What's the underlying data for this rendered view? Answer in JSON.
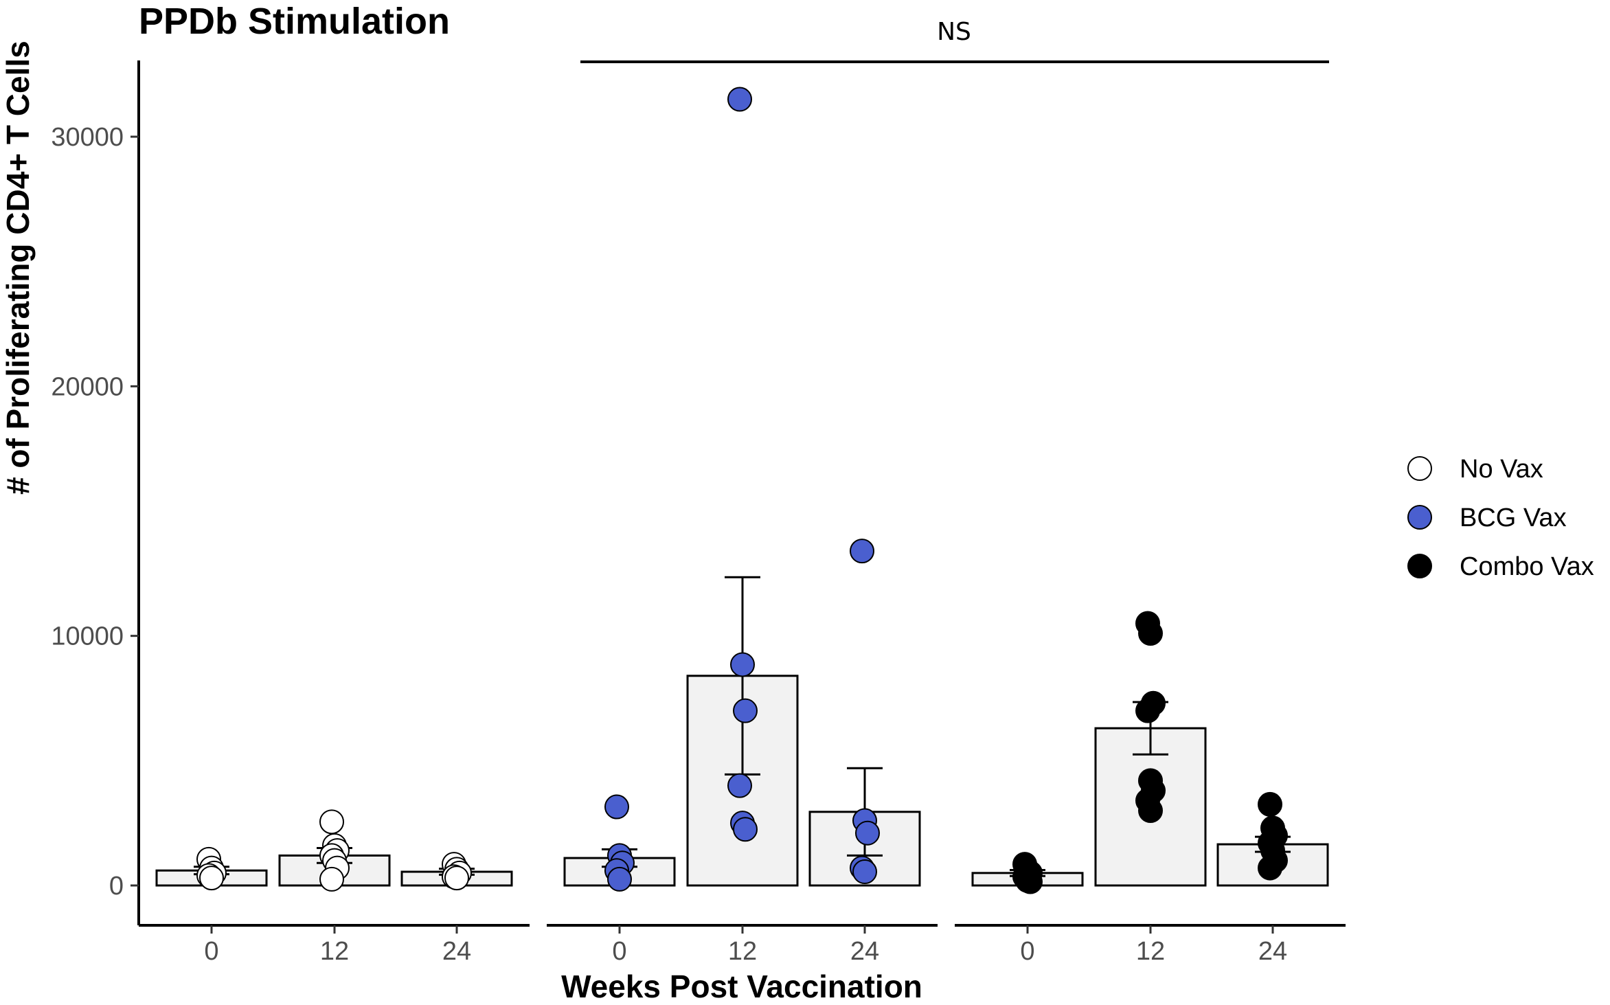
{
  "chart_data": {
    "type": "bar",
    "title": "PPDb Stimulation",
    "xlabel": "Weeks Post Vaccination",
    "ylabel": "# of Proliferating CD4+ T Cells",
    "ylim": [
      -1600,
      33000
    ],
    "yticks": [
      0,
      10000,
      20000,
      30000
    ],
    "ytick_labels": [
      "0",
      "10000",
      "20000",
      "30000"
    ],
    "categories": [
      "0",
      "12",
      "24"
    ],
    "grid": false,
    "legend_position": "right",
    "annotation": {
      "text": "NS",
      "span": "BCG Vax week 0 to Combo Vax week 24"
    },
    "series": [
      {
        "name": "No Vax",
        "color": "#ffffff",
        "values": [
          600,
          1200,
          550
        ],
        "errors": [
          150,
          300,
          120
        ],
        "points": [
          [
            1050,
            700,
            500,
            400,
            300
          ],
          [
            2550,
            1600,
            1400,
            1200,
            1000,
            700,
            250
          ],
          [
            850,
            650,
            500,
            350,
            300
          ]
        ]
      },
      {
        "name": "BCG Vax",
        "color": "#4a5fcf",
        "values": [
          1100,
          8400,
          2950
        ],
        "errors": [
          350,
          3950,
          1750
        ],
        "points": [
          [
            3150,
            1200,
            900,
            600,
            250
          ],
          [
            31500,
            8850,
            7000,
            4000,
            2500,
            2250
          ],
          [
            13400,
            2600,
            2100,
            700,
            550
          ]
        ]
      },
      {
        "name": "Combo Vax",
        "color": "#000000",
        "values": [
          500,
          6300,
          1650
        ],
        "errors": [
          120,
          1050,
          300
        ],
        "points": [
          [
            850,
            600,
            500,
            350,
            200,
            150
          ],
          [
            10500,
            10100,
            7300,
            7000,
            4200,
            3800,
            3400,
            3000
          ],
          [
            3250,
            2300,
            2000,
            1700,
            1400,
            1000,
            700
          ]
        ]
      }
    ]
  }
}
